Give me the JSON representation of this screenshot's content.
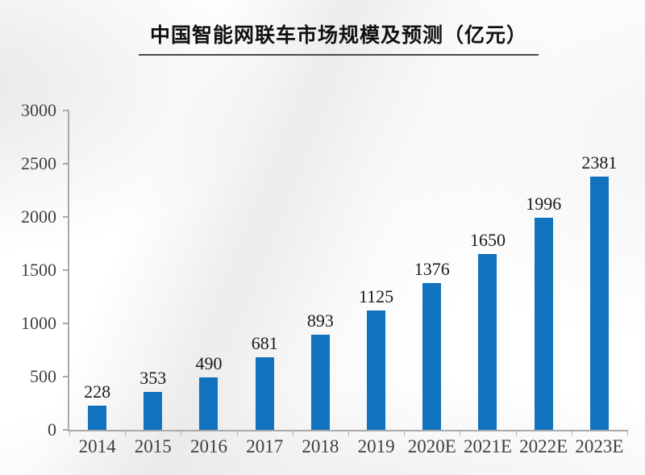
{
  "page": {
    "title": "中国智能网联车市场规模及预测（亿元）"
  },
  "chart_data": {
    "type": "bar",
    "title": "中国智能网联车市场规模及预测（亿元）",
    "subtitle": "",
    "unit": "亿元",
    "categories": [
      "2014",
      "2015",
      "2016",
      "2017",
      "2018",
      "2019",
      "2020E",
      "2021E",
      "2022E",
      "2023E"
    ],
    "values": [
      228,
      353,
      490,
      681,
      893,
      1125,
      1376,
      1650,
      1996,
      2381
    ],
    "data_labels": [
      228,
      353,
      490,
      681,
      893,
      1125,
      1376,
      1650,
      1996,
      2381
    ],
    "xlabel": "",
    "ylabel": "",
    "ylim": [
      0,
      3000
    ],
    "yticks": [
      0,
      500,
      1000,
      1500,
      2000,
      2500,
      3000
    ],
    "grid": false,
    "legend_position": "none"
  },
  "colors": {
    "bar": "#1172bd",
    "axis": "#a9a9a9",
    "tick_label": "#3f3f3f",
    "data_label": "#1a1a1a",
    "title_text": "#111111",
    "title_underline": "#4a4a4a"
  }
}
